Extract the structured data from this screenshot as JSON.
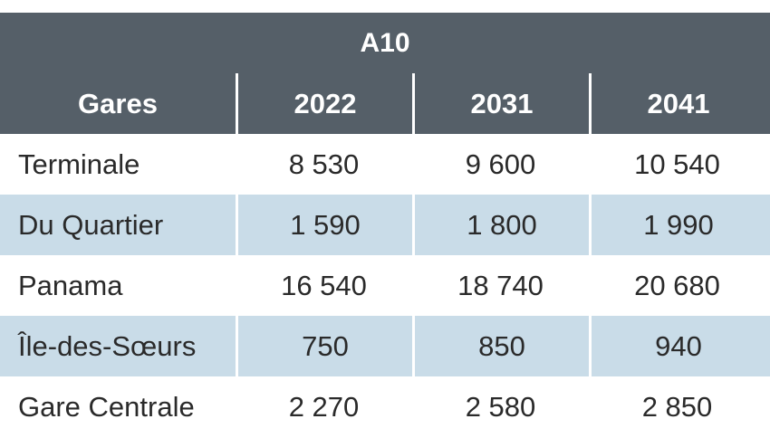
{
  "table": {
    "title": "A10",
    "headers": [
      "Gares",
      "2022",
      "2031",
      "2041"
    ],
    "rows": [
      [
        "Terminale",
        "8 530",
        "9 600",
        "10 540"
      ],
      [
        "Du Quartier",
        "1 590",
        "1 800",
        "1 990"
      ],
      [
        "Panama",
        "16 540",
        "18 740",
        "20 680"
      ],
      [
        "Île-des-Sœurs",
        "750",
        "850",
        "940"
      ],
      [
        "Gare Centrale",
        "2 270",
        "2 580",
        "2 850"
      ]
    ]
  },
  "colors": {
    "header_bg": "#555f68",
    "header_text": "#ffffff",
    "alt_row_bg": "#c9dce8",
    "body_text": "#2a2a2a"
  }
}
